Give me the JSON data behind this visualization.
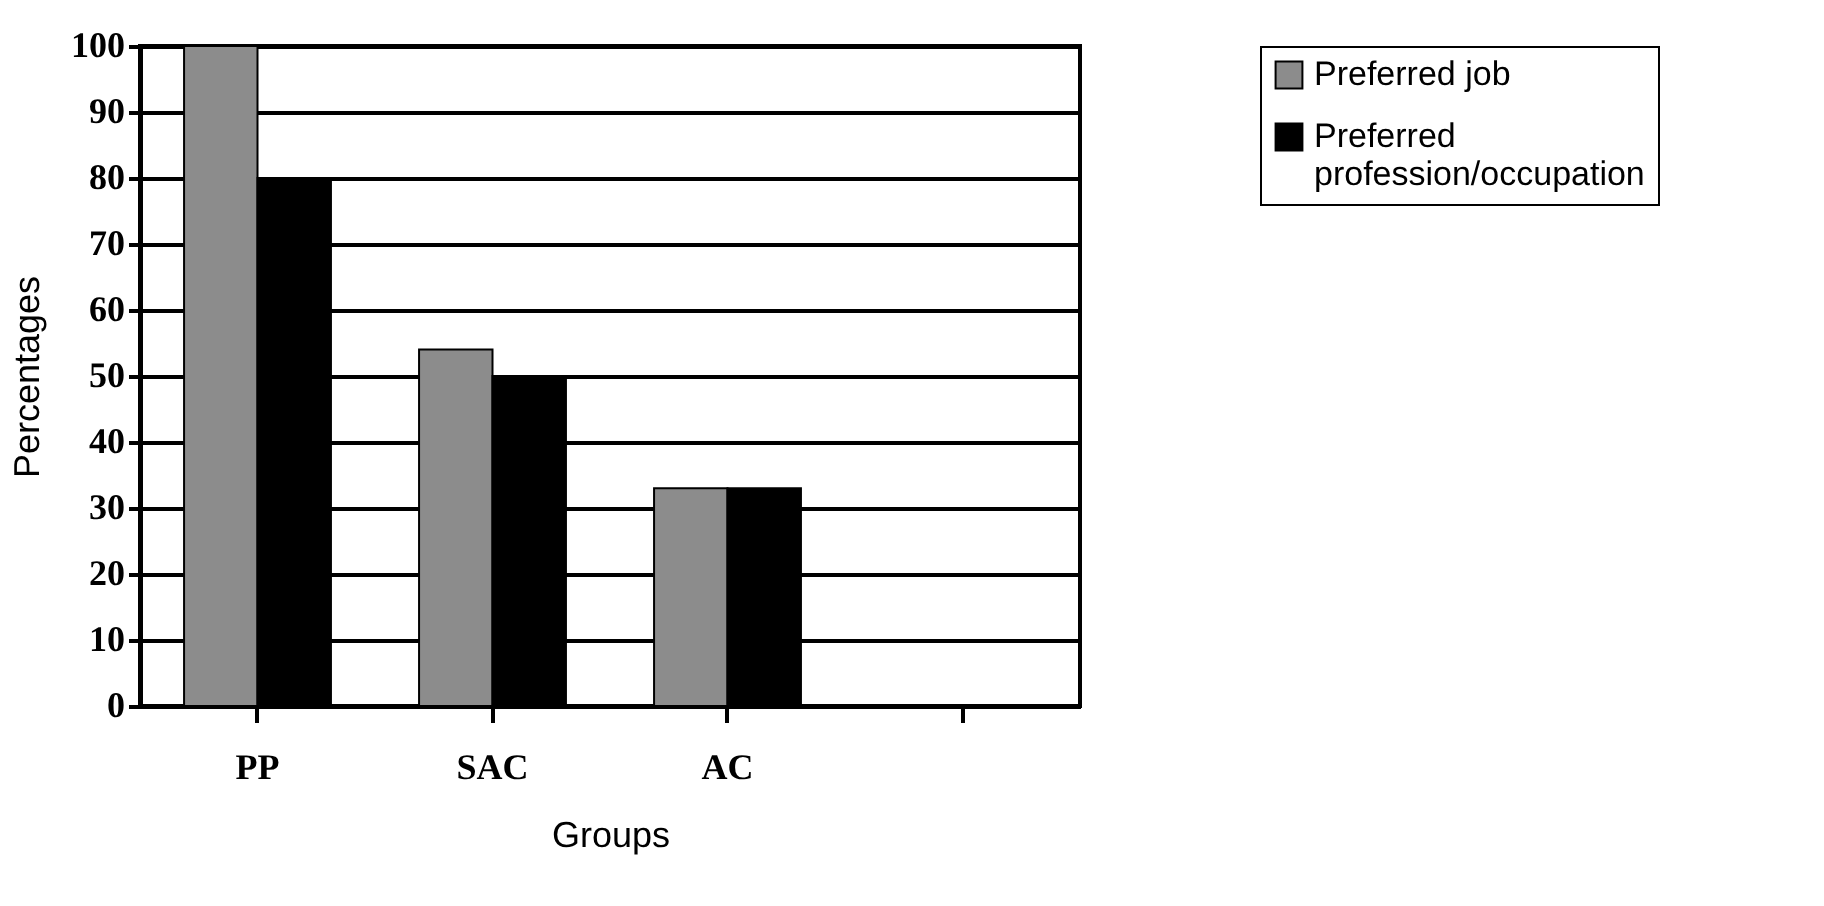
{
  "chart_data": {
    "type": "bar",
    "xlabel": "Groups",
    "ylabel": "Percentages",
    "categories": [
      "PP",
      "SAC",
      "AC",
      null
    ],
    "series": [
      {
        "name": "Preferred job",
        "color": "#8c8c8c",
        "values": [
          100,
          54,
          33,
          null
        ]
      },
      {
        "name": "Preferred profession/occupation",
        "color": "#000000",
        "values": [
          80,
          50,
          33,
          null
        ]
      }
    ],
    "ylim": [
      0,
      100
    ],
    "yticks": [
      0,
      10,
      20,
      30,
      40,
      50,
      60,
      70,
      80,
      90,
      100
    ],
    "grid": "y",
    "legend": "right"
  }
}
